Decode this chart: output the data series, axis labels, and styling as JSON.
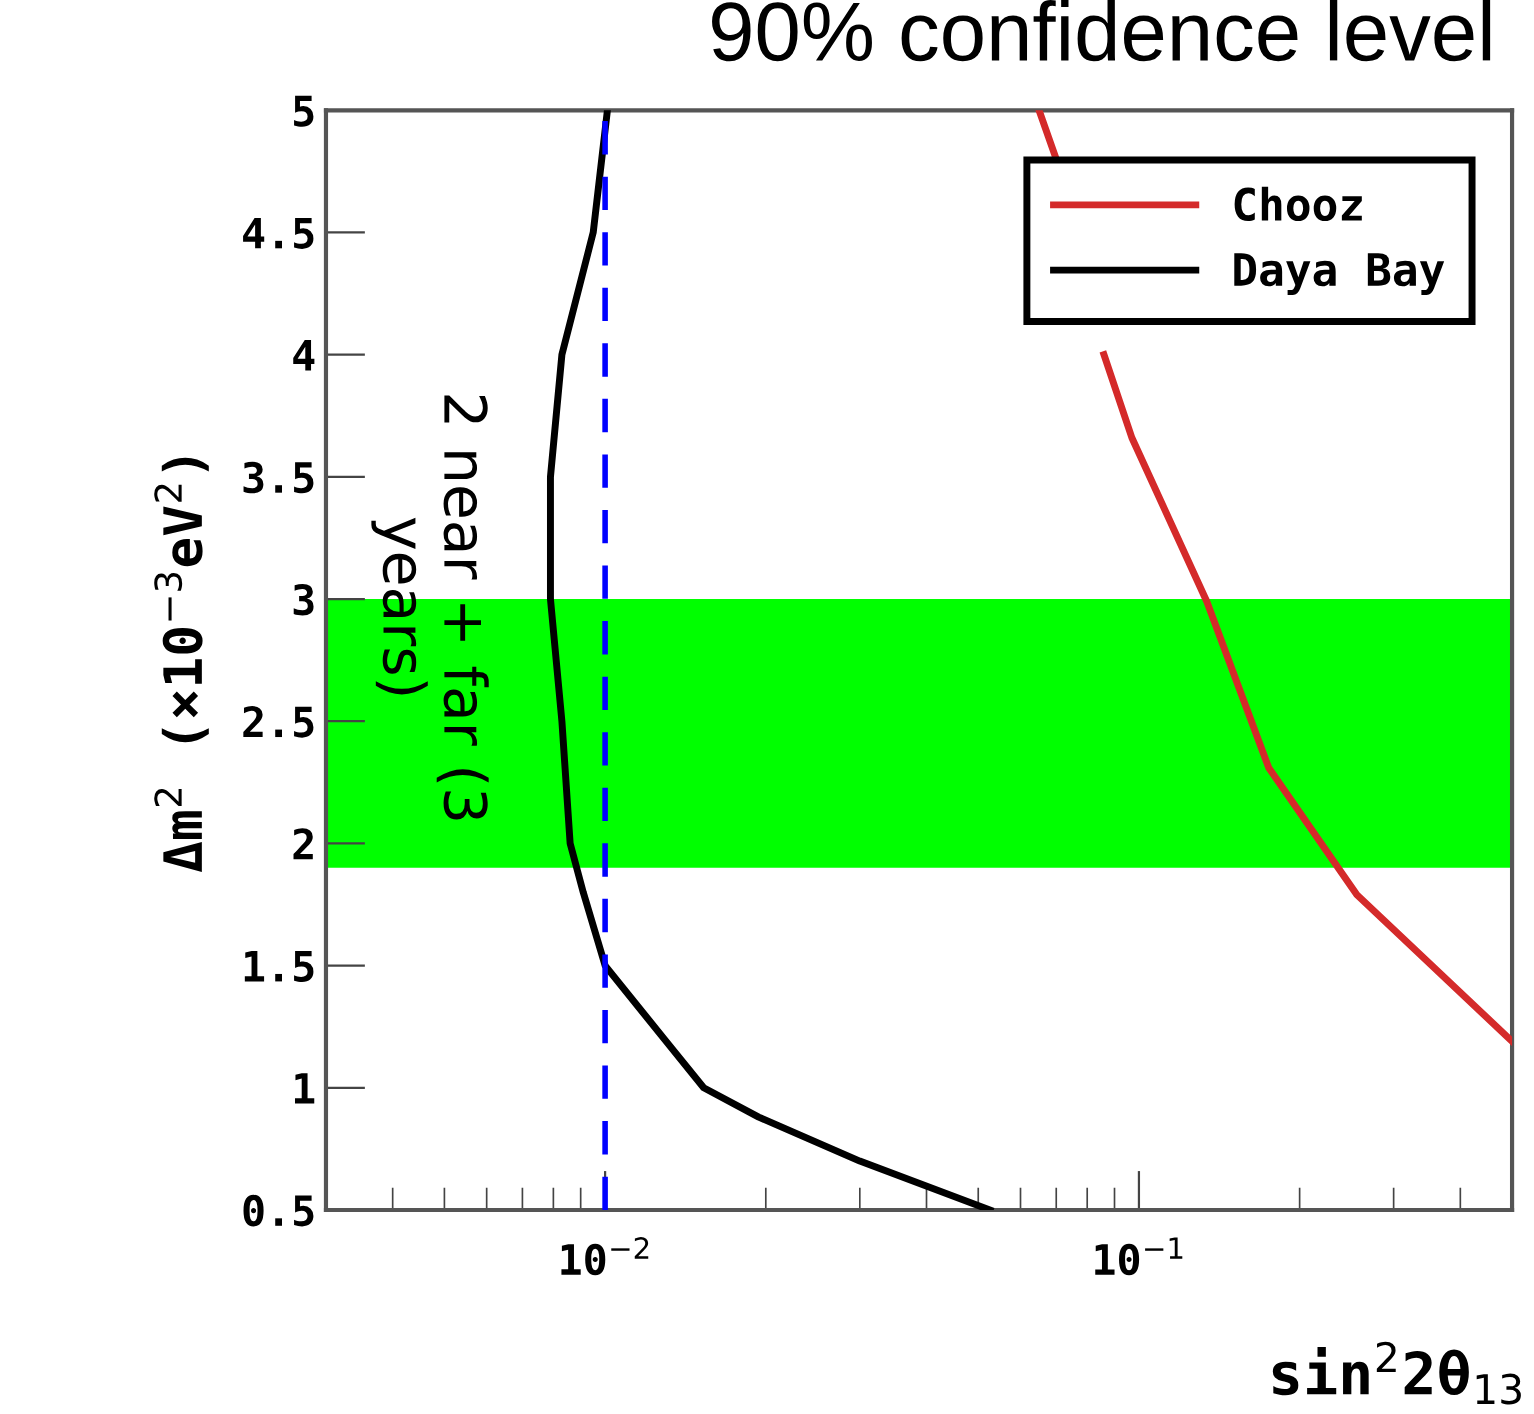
{
  "chart_data": {
    "type": "line",
    "title": "90% confidence level",
    "xlabel": "sin$^{2}$2θ$_{13}$",
    "ylabel": "Δm$^{2}$ (×10$^{−3}$eV$^{2}$)",
    "annotations": [
      "2 near + far (3 years)"
    ],
    "log": "x",
    "xlim": [
      0.003,
      0.5
    ],
    "xticks": [
      {
        "value": 0.01,
        "label": "10$^{−2}$"
      },
      {
        "value": 0.1,
        "label": "10$^{−1}$"
      }
    ],
    "ylim": [
      0.5,
      5
    ],
    "yticks": [
      0.5,
      1,
      1.5,
      2,
      2.5,
      3,
      3.5,
      4,
      4.5,
      5
    ],
    "grid": false,
    "legend": "top right",
    "line_style": "solid",
    "ref_lines": [
      {
        "axis": "x",
        "value": 0.01,
        "color": "#0000ff",
        "line_style": "dashed"
      }
    ],
    "bands": [
      {
        "axis": "y",
        "from": 1.9,
        "to": 3.0,
        "color": "#00ff00"
      }
    ],
    "series": [
      {
        "name": "Chooz",
        "color": "#d42a2a",
        "x": [
          0.065,
          0.07,
          0.078,
          0.086,
          0.097,
          0.134,
          0.175,
          0.256,
          0.5
        ],
        "values": [
          5,
          4.8,
          null,
          4.0,
          3.66,
          2.99,
          2.31,
          1.79,
          1.19
        ]
      },
      {
        "name": "Daya Bay",
        "color": "#000000",
        "x": [
          0.0101,
          0.0095,
          0.0083,
          0.0079,
          0.0079,
          0.0083,
          0.0086,
          0.0091,
          0.01,
          0.0129,
          0.0153,
          0.0194,
          0.03,
          0.0526
        ],
        "values": [
          5,
          4.5,
          4,
          3.5,
          3,
          2.5,
          2,
          1.8,
          1.5,
          1.2,
          1,
          0.88,
          0.7,
          0.5
        ]
      }
    ]
  }
}
